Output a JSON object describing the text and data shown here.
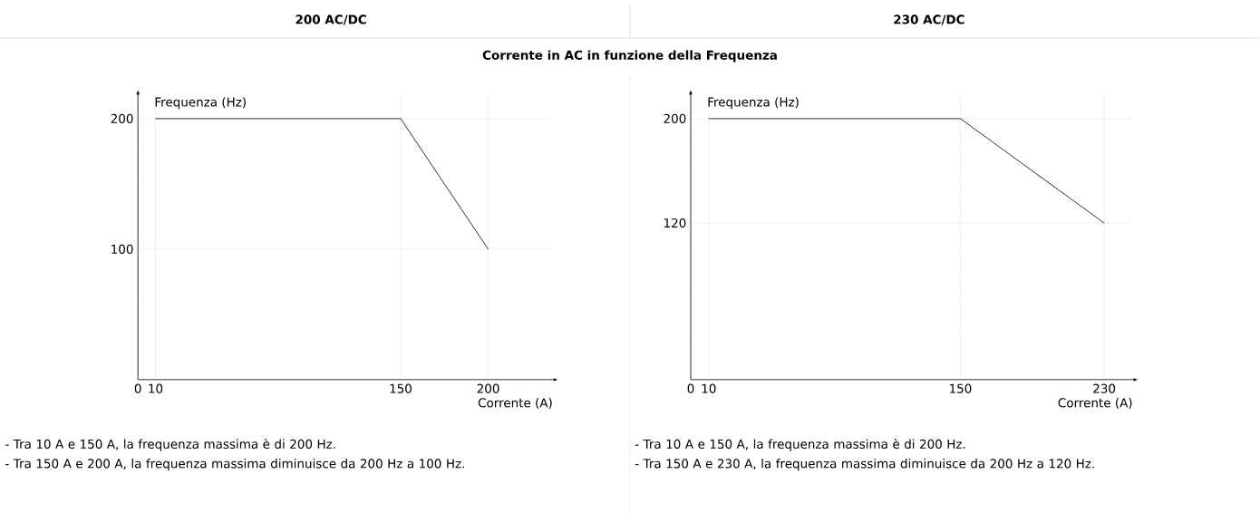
{
  "chart_data": [
    {
      "type": "line",
      "title": "200 AC/DC",
      "subtitle": "Corrente in AC in funzione della Frequenza",
      "xlabel": "Corrente (A)",
      "ylabel": "Frequenza (Hz)",
      "x": [
        10,
        150,
        200
      ],
      "series": [
        {
          "color": "#000000",
          "values": [
            200,
            200,
            100
          ]
        }
      ],
      "xlim": [
        0,
        237
      ],
      "ylim": [
        0,
        218
      ],
      "xticks": [
        0,
        10,
        150,
        200
      ],
      "yticks": [
        100,
        200
      ],
      "grid": true,
      "annotations": [
        "- Tra 10 A e 150 A, la frequenza massima è di 200 Hz.",
        "- Tra 150 A e 200 A, la frequenza massima diminuisce da 200 Hz a 100 Hz."
      ]
    },
    {
      "type": "line",
      "title": "230 AC/DC",
      "xlabel": "Corrente (A)",
      "ylabel": "Frequenza (Hz)",
      "x": [
        10,
        150,
        230
      ],
      "series": [
        {
          "color": "#000000",
          "values": [
            200,
            200,
            120
          ]
        }
      ],
      "xlim": [
        0,
        246
      ],
      "ylim": [
        0,
        218
      ],
      "xticks": [
        0,
        10,
        150,
        230
      ],
      "yticks": [
        120,
        200
      ],
      "grid": true,
      "annotations": [
        "- Tra 10 A e 150 A, la frequenza massima è di 200 Hz.",
        "- Tra 150 A e 230 A, la frequenza massima diminuisce da 200 Hz a 120 Hz."
      ]
    }
  ]
}
